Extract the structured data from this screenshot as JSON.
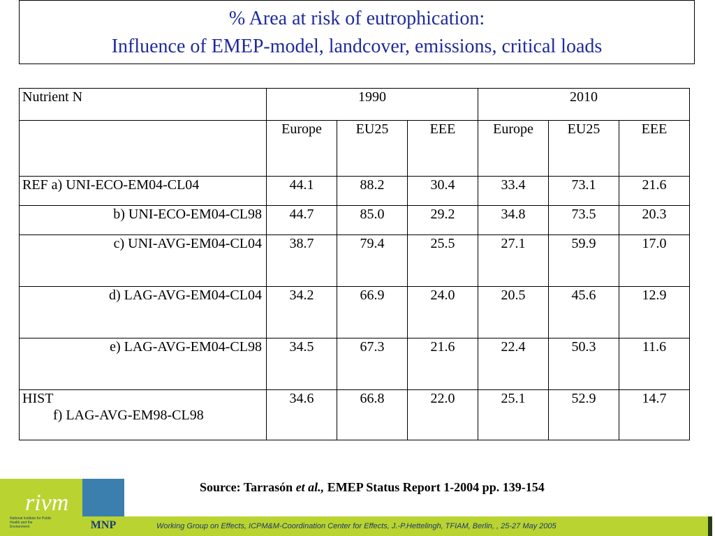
{
  "title": {
    "line1": "% Area at risk of eutrophication:",
    "line2": "Influence of EMEP-model, landcover, emissions, critical loads"
  },
  "table": {
    "corner_label": "Nutrient N",
    "years": [
      "1990",
      "2010"
    ],
    "regions": [
      "Europe",
      "EU25",
      "EEE",
      "Europe",
      "EU25",
      "EEE"
    ],
    "rows": [
      {
        "label": "REF a) UNI-ECO-EM04-CL04",
        "values": [
          "44.1",
          "88.2",
          "30.4",
          "33.4",
          "73.1",
          "21.6"
        ]
      },
      {
        "label": "b) UNI-ECO-EM04-CL98",
        "values": [
          "44.7",
          "85.0",
          "29.2",
          "34.8",
          "73.5",
          "20.3"
        ]
      },
      {
        "label": "c) UNI-AVG-EM04-CL04",
        "values": [
          "38.7",
          "79.4",
          "25.5",
          "27.1",
          "59.9",
          "17.0"
        ]
      },
      {
        "label": "d) LAG-AVG-EM04-CL04",
        "values": [
          "34.2",
          "66.9",
          "24.0",
          "20.5",
          "45.6",
          "12.9"
        ]
      },
      {
        "label": "e) LAG-AVG-EM04-CL98",
        "values": [
          "34.5",
          "67.3",
          "21.6",
          "22.4",
          "50.3",
          "11.6"
        ]
      },
      {
        "label_line1": "HIST",
        "label_line2": "f) LAG-AVG-EM98-CL98",
        "values": [
          "34.6",
          "66.8",
          "22.0",
          "25.1",
          "52.9",
          "14.7"
        ]
      }
    ]
  },
  "source": {
    "prefix": "Source: Tarrasón ",
    "italic": "et al.,",
    "suffix": " EMEP Status Report 1-2004 pp. 139-154"
  },
  "logo": {
    "rivm": "rivm",
    "institute": "National Institute for Public Health and the Environment",
    "mnp": "MNP"
  },
  "footer": "Working Group on Effects, ICPM&M-Coordination Center for Effects, J.-P.Hettelingh, TFIAM, Berlin, , 25-27 May  2005",
  "colors": {
    "title": "#1f2a9c",
    "green": "#b9d430",
    "blue": "#3b7fae"
  }
}
